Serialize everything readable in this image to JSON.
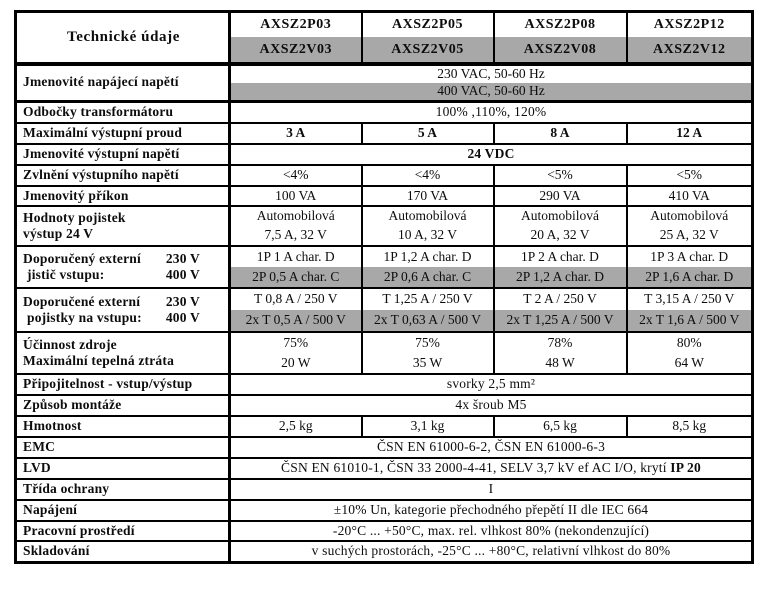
{
  "colors": {
    "shade": "#a8a8a8",
    "border": "#000000",
    "page_bg": "#ffffff"
  },
  "header": {
    "title": "Technické údaje",
    "models_p": [
      "AXSZ2P03",
      "AXSZ2P05",
      "AXSZ2P08",
      "AXSZ2P12"
    ],
    "models_v": [
      "AXSZ2V03",
      "AXSZ2V05",
      "AXSZ2V08",
      "AXSZ2V12"
    ]
  },
  "rows": {
    "napajeci": {
      "label": "Jmenovité napájecí napětí",
      "value_230": "230 VAC, 50-60 Hz",
      "value_400": "400 VAC, 50-60 Hz"
    },
    "odbocky": {
      "label": "Odbočky transformátoru",
      "value": "100% ,110%, 120%"
    },
    "proud": {
      "label": "Maximální výstupní proud",
      "values": [
        "3 A",
        "5 A",
        "8 A",
        "12 A"
      ]
    },
    "vystupni_napeti": {
      "label": "Jmenovité výstupní napětí",
      "value": "24 VDC"
    },
    "zvlneni": {
      "label": "Zvlnění výstupního napětí",
      "values": [
        "<4%",
        "<4%",
        "<5%",
        "<5%"
      ]
    },
    "prikon": {
      "label": "Jmenovitý příkon",
      "values": [
        "100 VA",
        "170 VA",
        "290 VA",
        "410 VA"
      ]
    },
    "pojistky_vystup": {
      "label_line1": "Hodnoty pojistek",
      "label_line2": "výstup 24 V",
      "values_line1": [
        "Automobilová",
        "Automobilová",
        "Automobilová",
        "Automobilová"
      ],
      "values_line2": [
        "7,5 A, 32 V",
        "10 A, 32 V",
        "20 A, 32 V",
        "25 A, 32 V"
      ]
    },
    "jistic": {
      "label_line1": "Doporučený externí",
      "label_line1_v": "230 V",
      "label_line2": "jistič vstupu:",
      "label_line2_v": "400 V",
      "values_230": [
        "1P 1 A char. D",
        "1P 1,2 A char. D",
        "1P 2 A char. D",
        "1P 3 A char. D"
      ],
      "values_400": [
        "2P 0,5 A char. C",
        "2P 0,6 A char. C",
        "2P 1,2 A char. D",
        "2P 1,6 A char. D"
      ]
    },
    "pojistky_vstup": {
      "label_line1": "Doporučené externí",
      "label_line1_v": "230 V",
      "label_line2": "pojistky na vstupu:",
      "label_line2_v": "400 V",
      "values_230": [
        "T 0,8 A / 250 V",
        "T 1,25 A / 250 V",
        "T 2 A / 250 V",
        "T 3,15 A / 250 V"
      ],
      "values_400": [
        "2x T 0,5 A / 500 V",
        "2x T 0,63 A / 500 V",
        "2x T 1,25 A / 500 V",
        "2x T 1,6 A / 500 V"
      ]
    },
    "ucinnost": {
      "label_line1": "Účinnost zdroje",
      "label_line2": "Maximální tepelná ztráta",
      "values_line1": [
        "75%",
        "75%",
        "78%",
        "80%"
      ],
      "values_line2": [
        "20 W",
        "35 W",
        "48 W",
        "64 W"
      ]
    },
    "pripojitelnost": {
      "label": "Připojitelnost - vstup/výstup",
      "value": "svorky 2,5 mm²"
    },
    "montaz": {
      "label": "Způsob montáže",
      "value": "4x šroub M5"
    },
    "hmotnost": {
      "label": "Hmotnost",
      "values": [
        "2,5 kg",
        "3,1 kg",
        "6,5 kg",
        "8,5 kg"
      ]
    },
    "emc": {
      "label": "EMC",
      "value": "ČSN EN 61000-6-2, ČSN EN 61000-6-3"
    },
    "lvd": {
      "label": "LVD",
      "value": "ČSN EN 61010-1, ČSN 33 2000-4-41, SELV 3,7 kV ef AC I/O, krytí",
      "value_bold": "IP 20"
    },
    "trida": {
      "label": "Třída ochrany",
      "value": "I"
    },
    "napajeni": {
      "label": "Napájení",
      "value": "±10% Un, kategorie přechodného přepětí II dle IEC 664"
    },
    "prostredi": {
      "label": "Pracovní prostředí",
      "value": "-20°C ... +50°C,  max. rel. vlhkost 80% (nekondenzující)"
    },
    "skladovani": {
      "label": "Skladování",
      "value": "v suchých prostorách, -25°C ... +80°C, relativní vlhkost do 80%"
    }
  }
}
